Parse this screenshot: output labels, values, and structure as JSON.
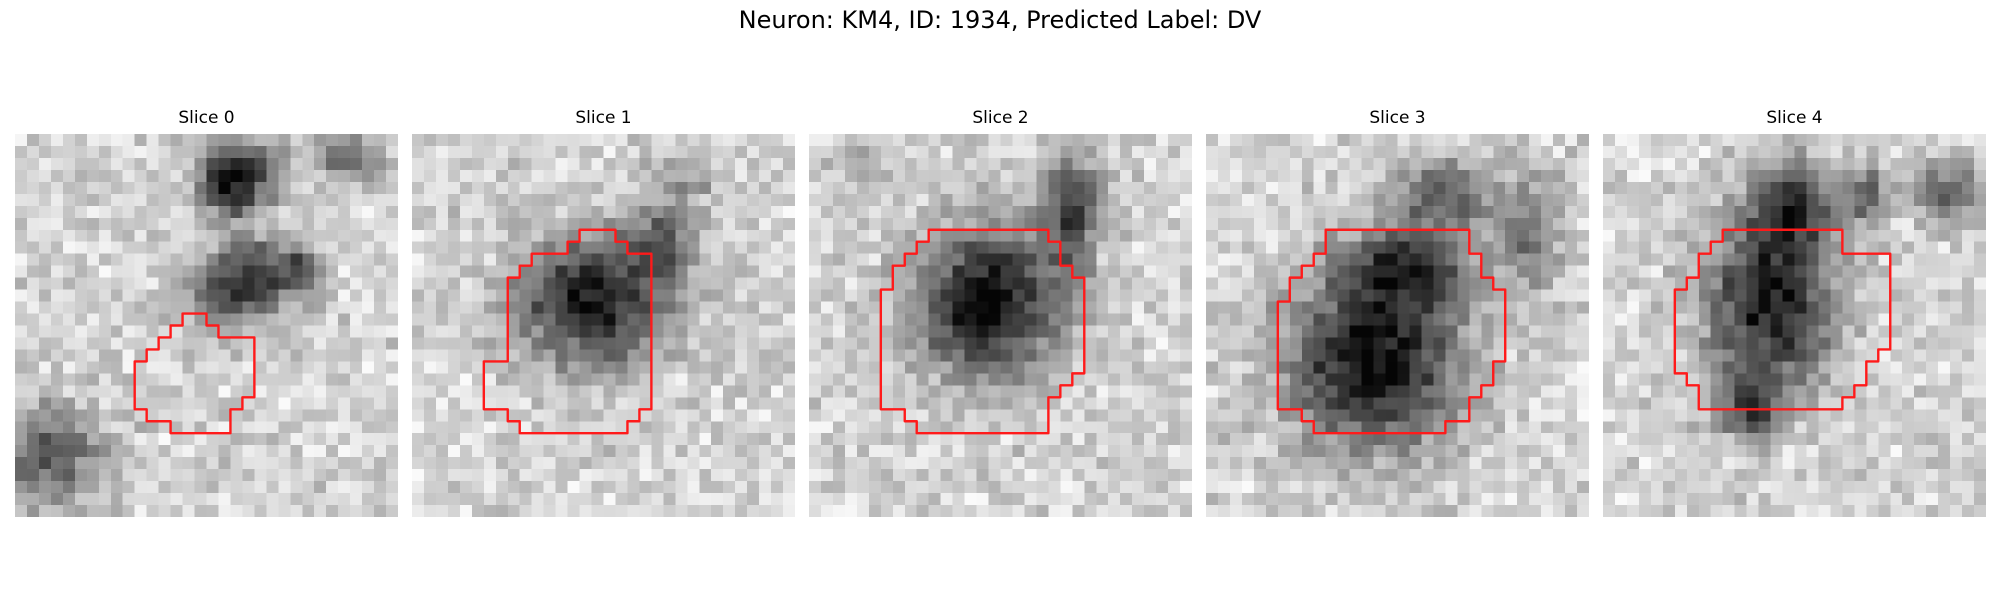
{
  "figure": {
    "suptitle": "Neuron: KM4, ID: 1934, Predicted Label: DV"
  },
  "colors": {
    "contour": "#ff1a1a",
    "background": "#ffffff"
  },
  "slices": [
    {
      "title": "Slice 0",
      "cmap": "gray"
    },
    {
      "title": "Slice 1",
      "cmap": "gray"
    },
    {
      "title": "Slice 2",
      "cmap": "gray"
    },
    {
      "title": "Slice 3",
      "cmap": "gray"
    },
    {
      "title": "Slice 4",
      "cmap": "gray"
    }
  ]
}
